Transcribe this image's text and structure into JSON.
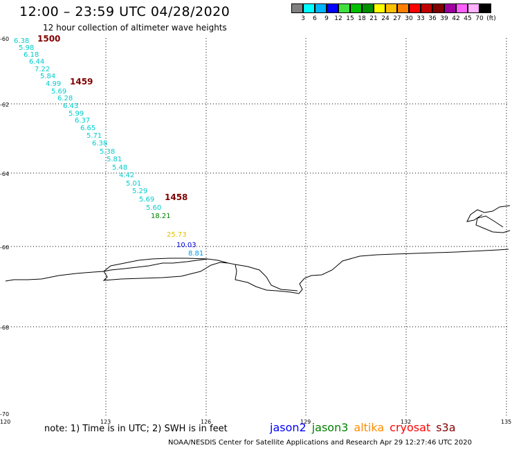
{
  "title": "12:00 – 23:59 UTC 04/28/2020",
  "subtitle": "12 hour collection of altimeter wave heights",
  "legend": {
    "colors": [
      "#808080",
      "#00ffff",
      "#00b4ff",
      "#0000ff",
      "#40e040",
      "#00c000",
      "#009000",
      "#ffff00",
      "#ffc000",
      "#ff8000",
      "#ff0000",
      "#c00000",
      "#800000",
      "#a000a0",
      "#ff60ff",
      "#ffb0ff",
      "#000000"
    ],
    "labels": [
      "3",
      "6",
      "9",
      "12",
      "15",
      "18",
      "21",
      "24",
      "27",
      "30",
      "33",
      "36",
      "39",
      "42",
      "45",
      "70",
      "(ft)"
    ]
  },
  "axes": {
    "lat_ticks": [
      "-60",
      "-62",
      "-64",
      "-66",
      "-68",
      "-70"
    ],
    "lon_ticks": [
      "120",
      "123",
      "126",
      "129",
      "132",
      "135"
    ]
  },
  "track_values": [
    {
      "v": "6.38",
      "c": "#00cccc"
    },
    {
      "v": "5.98",
      "c": "#00cccc"
    },
    {
      "v": "6.18",
      "c": "#00cccc"
    },
    {
      "v": "6.44",
      "c": "#00cccc"
    },
    {
      "v": "7.22",
      "c": "#00cccc"
    },
    {
      "v": "5.84",
      "c": "#00cccc"
    },
    {
      "v": "4.99",
      "c": "#00cccc"
    },
    {
      "v": "5.69",
      "c": "#00cccc"
    },
    {
      "v": "6.28",
      "c": "#00cccc"
    },
    {
      "v": "6.43",
      "c": "#00cccc"
    },
    {
      "v": "5.99",
      "c": "#00cccc"
    },
    {
      "v": "6.37",
      "c": "#00cccc"
    },
    {
      "v": "6.65",
      "c": "#00cccc"
    },
    {
      "v": "5.71",
      "c": "#00cccc"
    },
    {
      "v": "6.38",
      "c": "#00cccc"
    },
    {
      "v": "5.38",
      "c": "#00cccc"
    },
    {
      "v": "5.81",
      "c": "#00cccc"
    },
    {
      "v": "5.48",
      "c": "#00cccc"
    },
    {
      "v": "4.42",
      "c": "#00cccc"
    },
    {
      "v": "5.01",
      "c": "#00cccc"
    },
    {
      "v": "5.29",
      "c": "#00cccc"
    },
    {
      "v": "5.69",
      "c": "#00cccc"
    },
    {
      "v": "5.60",
      "c": "#00cccc"
    },
    {
      "v": "18.21",
      "c": "#008000"
    },
    {
      "v": "25.73",
      "c": "#e0c000"
    },
    {
      "v": "10.03",
      "c": "#0000dd"
    },
    {
      "v": "8.81",
      "c": "#0099ee"
    }
  ],
  "time_labels": [
    "1500",
    "1459",
    "1458"
  ],
  "note": "note: 1) Time is in UTC; 2) SWH is in feet",
  "satellites": [
    {
      "name": "jason2",
      "color": "#0000ff"
    },
    {
      "name": "jason3",
      "color": "#008000"
    },
    {
      "name": "altika",
      "color": "#ff8c00"
    },
    {
      "name": "cryosat",
      "color": "#ff0000"
    },
    {
      "name": "s3a",
      "color": "#800000"
    }
  ],
  "credit": "NOAA/NESDIS Center for Satellite Applications and Research    Apr 29 12:27:46 UTC 2020"
}
